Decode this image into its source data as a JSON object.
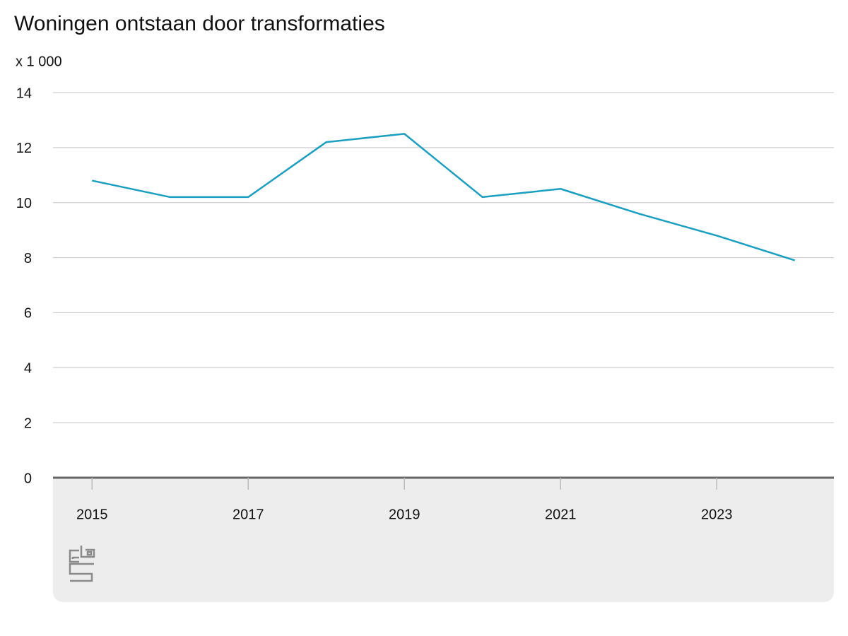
{
  "chart_data": {
    "type": "line",
    "title": "Woningen ontstaan door transformaties",
    "unit_label": "x 1 000",
    "x": [
      2015,
      2016,
      2017,
      2018,
      2019,
      2020,
      2021,
      2022,
      2023,
      2024
    ],
    "series": [
      {
        "name": "Woningen",
        "color": "#1a9fc0",
        "values": [
          10.8,
          10.2,
          10.2,
          12.2,
          12.5,
          10.2,
          10.5,
          9.6,
          8.8,
          7.9
        ]
      }
    ],
    "xlim": [
      2014.5,
      2024.5
    ],
    "xticks": [
      2015,
      2017,
      2019,
      2021,
      2023
    ],
    "ylim": [
      0,
      14
    ],
    "yticks": [
      0,
      2,
      4,
      6,
      8,
      10,
      12,
      14
    ],
    "grid": true
  }
}
